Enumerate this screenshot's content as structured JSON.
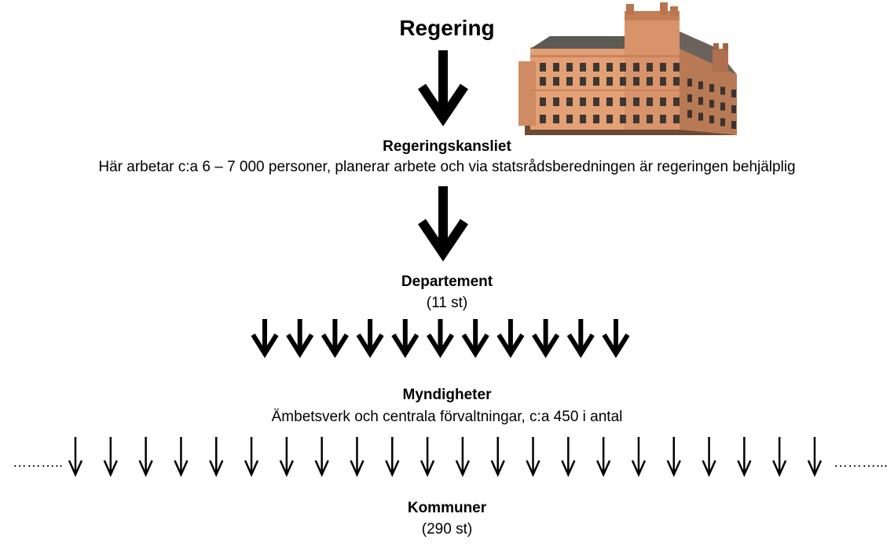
{
  "regering": {
    "title": "Regering"
  },
  "building": {
    "icon": "government-building-icon"
  },
  "regeringskansliet": {
    "heading": "Regeringskansliet",
    "description": "Här arbetar c:a 6 – 7 000 personer, planerar arbete och via statsrådsberedningen är regeringen behjälplig"
  },
  "departement": {
    "heading": "Departement",
    "count": "(11 st)",
    "arrow_count": 11
  },
  "myndigheter": {
    "heading": "Myndigheter",
    "description": "Ämbetsverk och centrala förvaltningar, c:a 450 i antal",
    "arrow_count": 22,
    "ellipsis_left": "………..",
    "ellipsis_right": "………..."
  },
  "kommuner": {
    "heading": "Kommuner",
    "count": "(290 st)"
  },
  "colors": {
    "arrow": "#000000",
    "text": "#000000",
    "background": "#ffffff"
  }
}
